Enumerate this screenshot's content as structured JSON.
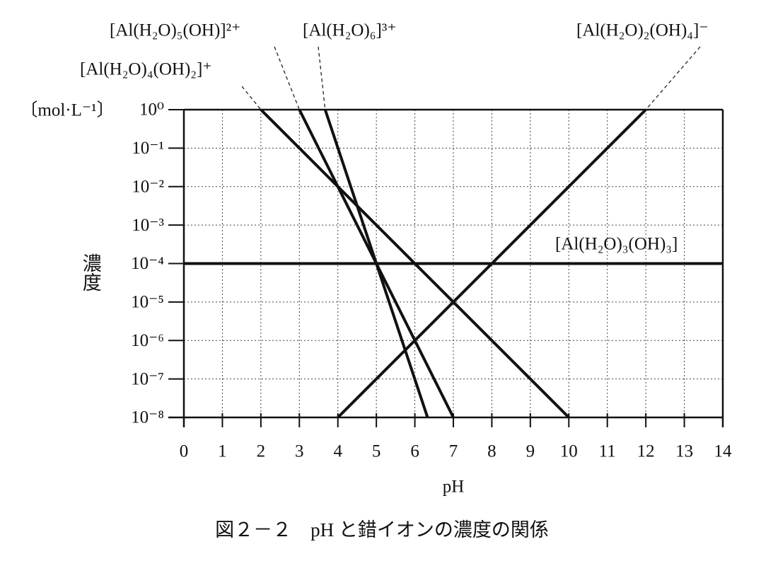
{
  "chart_data": {
    "type": "line",
    "caption": "図２－２　pH と錯イオンの濃度の関係",
    "x_label": "pH",
    "y_label": "濃度",
    "y_unit": "〔mol·L⁻¹〕",
    "log_y": true,
    "grid": true,
    "xlim": [
      0,
      14
    ],
    "xticks": [
      0,
      1,
      2,
      3,
      4,
      5,
      6,
      7,
      8,
      9,
      10,
      11,
      12,
      13,
      14
    ],
    "ylim": [
      1e-08,
      1
    ],
    "yticks": [
      {
        "value": 1,
        "label": "10⁰"
      },
      {
        "value": 0.1,
        "label": "10⁻¹"
      },
      {
        "value": 0.01,
        "label": "10⁻²"
      },
      {
        "value": 0.001,
        "label": "10⁻³"
      },
      {
        "value": 0.0001,
        "label": "10⁻⁴"
      },
      {
        "value": 1e-05,
        "label": "10⁻⁵"
      },
      {
        "value": 1e-06,
        "label": "10⁻⁶"
      },
      {
        "value": 1e-07,
        "label": "10⁻⁷"
      },
      {
        "value": 1e-08,
        "label": "10⁻⁸"
      }
    ],
    "series": [
      {
        "name": "[Al(H₂O)₆]³⁺",
        "color": "#111111",
        "x": [
          3.67,
          6.33
        ],
        "values": [
          1,
          1e-08
        ]
      },
      {
        "name": "[Al(H₂O)₅(OH)]²⁺",
        "color": "#111111",
        "x": [
          3,
          7
        ],
        "values": [
          1,
          1e-08
        ]
      },
      {
        "name": "[Al(H₂O)₄(OH)₂]⁺",
        "color": "#111111",
        "x": [
          2,
          10
        ],
        "values": [
          1,
          1e-08
        ]
      },
      {
        "name": "[Al(H₂O)₃(OH)₃]",
        "color": "#111111",
        "x": [
          0,
          14
        ],
        "values": [
          0.0001,
          0.0001
        ]
      },
      {
        "name": "[Al(H₂O)₂(OH)₄]⁻",
        "color": "#111111",
        "x": [
          4,
          12
        ],
        "values": [
          1e-08,
          1
        ]
      }
    ]
  }
}
